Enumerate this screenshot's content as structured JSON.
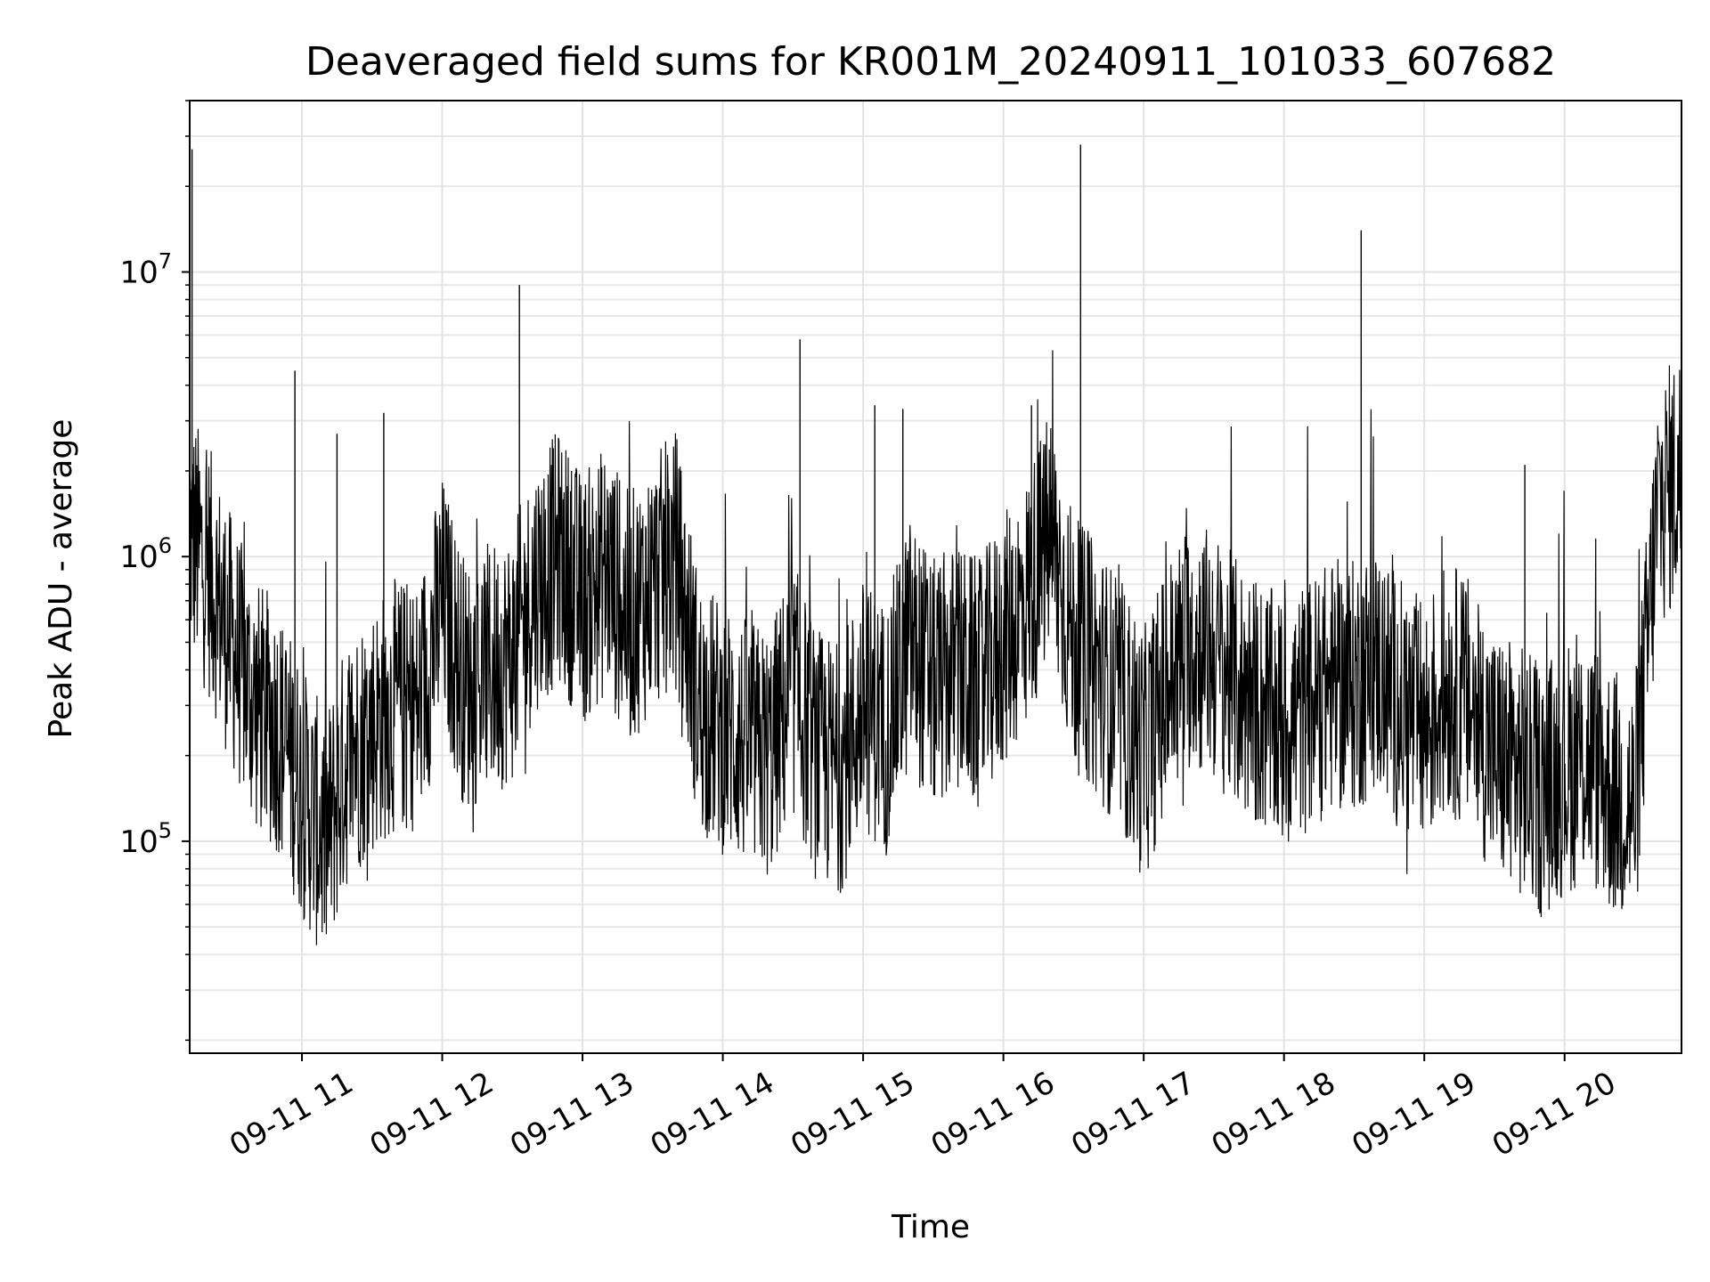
{
  "chart_data": {
    "type": "line",
    "title": "Deaveraged field sums for KR001M_20240911_101033_607682",
    "xlabel": "Time",
    "ylabel": "Peak ADU - average",
    "yscale": "log",
    "xlim": [
      "2024-09-11 10:12",
      "2024-09-11 20:50"
    ],
    "ylim": [
      18000,
      40000000
    ],
    "grid": true,
    "line_color": "#000000",
    "xticks": [
      {
        "x": "2024-09-11 11:00",
        "label": "09-11 11"
      },
      {
        "x": "2024-09-11 12:00",
        "label": "09-11 12"
      },
      {
        "x": "2024-09-11 13:00",
        "label": "09-11 13"
      },
      {
        "x": "2024-09-11 14:00",
        "label": "09-11 14"
      },
      {
        "x": "2024-09-11 15:00",
        "label": "09-11 15"
      },
      {
        "x": "2024-09-11 16:00",
        "label": "09-11 16"
      },
      {
        "x": "2024-09-11 17:00",
        "label": "09-11 17"
      },
      {
        "x": "2024-09-11 18:00",
        "label": "09-11 18"
      },
      {
        "x": "2024-09-11 19:00",
        "label": "09-11 19"
      },
      {
        "x": "2024-09-11 20:00",
        "label": "09-11 20"
      }
    ],
    "yticks": [
      {
        "y": 100000,
        "base": "10",
        "exp": "5"
      },
      {
        "y": 1000000,
        "base": "10",
        "exp": "6"
      },
      {
        "y": 10000000,
        "base": "10",
        "exp": "7"
      }
    ],
    "series": [
      {
        "x": [
          "2024-09-11 10:12",
          "2024-09-11 10:20",
          "2024-09-11 10:30",
          "2024-09-11 10:40",
          "2024-09-11 10:50",
          "2024-09-11 11:00",
          "2024-09-11 11:10",
          "2024-09-11 11:20",
          "2024-09-11 11:30",
          "2024-09-11 11:40",
          "2024-09-11 11:50",
          "2024-09-11 12:00",
          "2024-09-11 12:10",
          "2024-09-11 12:20",
          "2024-09-11 12:30",
          "2024-09-11 12:40",
          "2024-09-11 12:50",
          "2024-09-11 13:00",
          "2024-09-11 13:10",
          "2024-09-11 13:20",
          "2024-09-11 13:30",
          "2024-09-11 13:40",
          "2024-09-11 13:50",
          "2024-09-11 14:00",
          "2024-09-11 14:10",
          "2024-09-11 14:20",
          "2024-09-11 14:30",
          "2024-09-11 14:40",
          "2024-09-11 14:50",
          "2024-09-11 15:00",
          "2024-09-11 15:10",
          "2024-09-11 15:20",
          "2024-09-11 15:30",
          "2024-09-11 15:40",
          "2024-09-11 15:50",
          "2024-09-11 16:00",
          "2024-09-11 16:10",
          "2024-09-11 16:20",
          "2024-09-11 16:30",
          "2024-09-11 16:40",
          "2024-09-11 16:50",
          "2024-09-11 17:00",
          "2024-09-11 17:10",
          "2024-09-11 17:20",
          "2024-09-11 17:30",
          "2024-09-11 17:40",
          "2024-09-11 17:50",
          "2024-09-11 18:00",
          "2024-09-11 18:10",
          "2024-09-11 18:20",
          "2024-09-11 18:30",
          "2024-09-11 18:40",
          "2024-09-11 18:50",
          "2024-09-11 19:00",
          "2024-09-11 19:10",
          "2024-09-11 19:20",
          "2024-09-11 19:30",
          "2024-09-11 19:40",
          "2024-09-11 19:50",
          "2024-09-11 20:00",
          "2024-09-11 20:10",
          "2024-09-11 20:20",
          "2024-09-11 20:30",
          "2024-09-11 20:40",
          "2024-09-11 20:50"
        ],
        "y": [
          1200000,
          900000,
          500000,
          300000,
          250000,
          150000,
          100000,
          200000,
          250000,
          300000,
          300000,
          700000,
          350000,
          400000,
          450000,
          800000,
          1000000,
          700000,
          900000,
          600000,
          800000,
          1000000,
          300000,
          250000,
          220000,
          200000,
          350000,
          200000,
          180000,
          300000,
          250000,
          500000,
          350000,
          400000,
          350000,
          500000,
          700000,
          1200000,
          500000,
          400000,
          300000,
          200000,
          350000,
          500000,
          450000,
          350000,
          300000,
          250000,
          300000,
          350000,
          350000,
          400000,
          300000,
          250000,
          350000,
          300000,
          200000,
          180000,
          150000,
          180000,
          200000,
          150000,
          130000,
          1500000,
          2000000
        ],
        "spikes": [
          {
            "x": "2024-09-11 10:13",
            "y": 27000000
          },
          {
            "x": "2024-09-11 10:57",
            "y": 4500000
          },
          {
            "x": "2024-09-11 11:15",
            "y": 2700000
          },
          {
            "x": "2024-09-11 11:35",
            "y": 3200000
          },
          {
            "x": "2024-09-11 12:33",
            "y": 9000000
          },
          {
            "x": "2024-09-11 14:33",
            "y": 5800000
          },
          {
            "x": "2024-09-11 15:05",
            "y": 3400000
          },
          {
            "x": "2024-09-11 15:17",
            "y": 3300000
          },
          {
            "x": "2024-09-11 16:12",
            "y": 3400000
          },
          {
            "x": "2024-09-11 16:33",
            "y": 28000000
          },
          {
            "x": "2024-09-11 18:33",
            "y": 14000000
          },
          {
            "x": "2024-09-11 19:43",
            "y": 2100000
          },
          {
            "x": "2024-09-11 20:45",
            "y": 3000000
          }
        ]
      }
    ]
  }
}
